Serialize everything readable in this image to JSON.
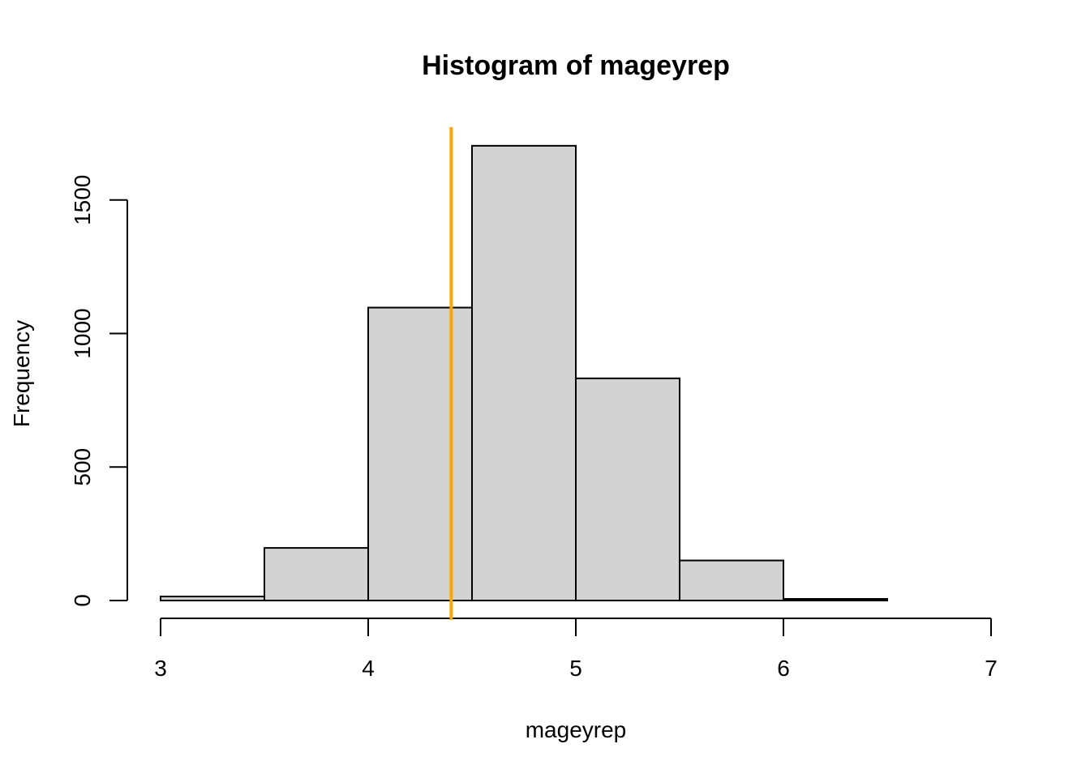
{
  "chart_data": {
    "type": "bar",
    "title": "Histogram of mageyrep",
    "xlabel": "mageyrep",
    "ylabel": "Frequency",
    "xlim": [
      3,
      7
    ],
    "ylim": [
      0,
      1700
    ],
    "x_ticks": [
      3,
      4,
      5,
      6,
      7
    ],
    "y_ticks": [
      0,
      500,
      1000,
      1500
    ],
    "x_tick_labels": [
      "3",
      "4",
      "5",
      "6",
      "7"
    ],
    "y_tick_labels": [
      "0",
      "500",
      "1000",
      "1500"
    ],
    "bins": [
      {
        "start": 3.0,
        "end": 3.5,
        "count": 15
      },
      {
        "start": 3.5,
        "end": 4.0,
        "count": 197
      },
      {
        "start": 4.0,
        "end": 4.5,
        "count": 1097
      },
      {
        "start": 4.5,
        "end": 5.0,
        "count": 1703
      },
      {
        "start": 5.0,
        "end": 5.5,
        "count": 832
      },
      {
        "start": 5.5,
        "end": 6.0,
        "count": 150
      },
      {
        "start": 6.0,
        "end": 6.5,
        "count": 6
      },
      {
        "start": 6.5,
        "end": 7.0,
        "count": 0
      }
    ],
    "reference_line": {
      "x": 4.4,
      "color": "#FFA500"
    },
    "bar_color": "#d3d3d3",
    "grid": false,
    "legend": "none"
  }
}
